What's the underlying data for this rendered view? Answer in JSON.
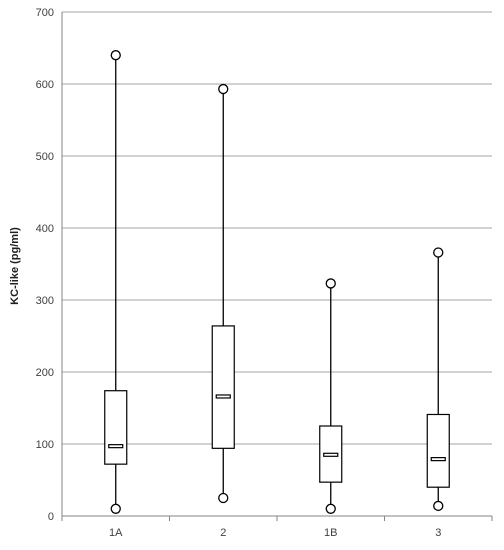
{
  "chart_data": {
    "type": "boxplot",
    "title": "",
    "xlabel": "",
    "ylabel": "KC-like (pg/ml)",
    "ylim": [
      0,
      700
    ],
    "yticks": [
      0,
      100,
      200,
      300,
      400,
      500,
      600,
      700
    ],
    "grid": true,
    "categories": [
      "1A",
      "2",
      "1B",
      "3"
    ],
    "boxes": [
      {
        "category": "1A",
        "min": 10,
        "q1": 72,
        "median": 97,
        "q3": 174,
        "max": 640
      },
      {
        "category": "2",
        "min": 25,
        "q1": 94,
        "median": 166,
        "q3": 264,
        "max": 593
      },
      {
        "category": "1B",
        "min": 10,
        "q1": 47,
        "median": 85,
        "q3": 125,
        "max": 323
      },
      {
        "category": "3",
        "min": 14,
        "q1": 40,
        "median": 79,
        "q3": 141,
        "max": 366
      }
    ],
    "colors": {
      "grid": "#a6a6a6",
      "box_fill": "#ffffff",
      "stroke": "#000000"
    }
  }
}
